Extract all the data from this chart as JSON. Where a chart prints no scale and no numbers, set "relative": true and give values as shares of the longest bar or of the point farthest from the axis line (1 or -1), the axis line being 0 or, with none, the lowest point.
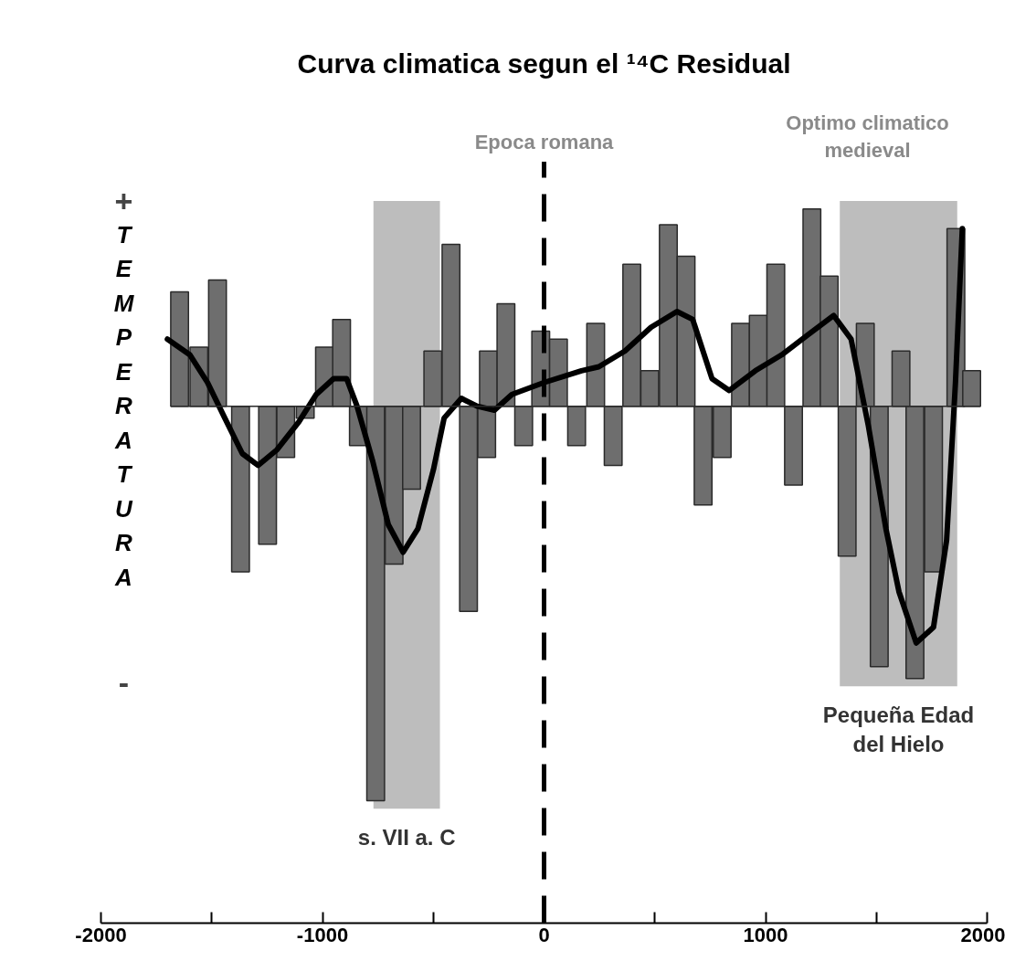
{
  "chart_data": {
    "type": "bar",
    "title": "Curva climatica segun el ¹⁴C Residual",
    "ylabel": "TEMPERATURA",
    "relative": true,
    "x": [
      -1645,
      -1558,
      -1474,
      -1370,
      -1248,
      -1166,
      -1078,
      -991,
      -914,
      -838,
      -760,
      -677,
      -598,
      -502,
      -420,
      -341,
      -259,
      -251,
      -172,
      -92,
      -15,
      65,
      147,
      233,
      312,
      396,
      477,
      561,
      641,
      718,
      804,
      887,
      967,
      1046,
      1126,
      1209,
      1287,
      1368,
      1450,
      1513,
      1611,
      1674,
      1758,
      1859,
      1930
    ],
    "series": [
      {
        "color": "#6e6e6e",
        "values": [
          0.29,
          0.15,
          0.32,
          -0.42,
          -0.35,
          -0.13,
          -0.03,
          0.15,
          0.22,
          -0.1,
          -1.0,
          -0.4,
          -0.21,
          0.14,
          0.41,
          -0.52,
          -0.13,
          0.14,
          0.26,
          -0.1,
          0.19,
          0.17,
          -0.1,
          0.21,
          -0.15,
          0.36,
          0.09,
          0.46,
          0.38,
          -0.25,
          -0.13,
          0.21,
          0.23,
          0.36,
          -0.2,
          0.5,
          0.33,
          -0.38,
          0.21,
          -0.66,
          0.14,
          -0.69,
          -0.42,
          0.45,
          0.09
        ]
      },
      {
        "type": "line",
        "color": "#000000",
        "x": [
          -1700,
          -1598,
          -1519,
          -1441,
          -1362,
          -1291,
          -1205,
          -1107,
          -1028,
          -950,
          -891,
          -844,
          -773,
          -703,
          -636,
          -569,
          -499,
          -451,
          -373,
          -302,
          -224,
          -145,
          0,
          169,
          247,
          365,
          483,
          600,
          671,
          758,
          836,
          954,
          1072,
          1189,
          1307,
          1386,
          1464,
          1543,
          1602,
          1680,
          1758,
          1817,
          1857,
          1888
        ],
        "values": [
          0.17,
          0.13,
          0.06,
          -0.03,
          -0.12,
          -0.15,
          -0.11,
          -0.04,
          0.03,
          0.07,
          0.07,
          0.0,
          -0.14,
          -0.3,
          -0.37,
          -0.31,
          -0.16,
          -0.03,
          0.02,
          0.0,
          -0.01,
          0.03,
          0.06,
          0.09,
          0.1,
          0.14,
          0.2,
          0.24,
          0.22,
          0.07,
          0.04,
          0.09,
          0.13,
          0.18,
          0.23,
          0.17,
          -0.05,
          -0.31,
          -0.47,
          -0.6,
          -0.56,
          -0.34,
          0.06,
          0.45
        ]
      }
    ],
    "xlim": [
      -2000,
      2000
    ],
    "xticks": [
      -2000,
      -1000,
      0,
      1000,
      2000
    ],
    "tick_labels": "x",
    "ref_lines": [
      {
        "axis": "x",
        "value": 0,
        "label": "Epoca romana",
        "color": "#000000",
        "line_style": "dashed"
      }
    ],
    "bands": [
      {
        "axis": "x",
        "from": -770,
        "to": -470,
        "label": "s. VII a. C",
        "color": "#bdbdbd"
      },
      {
        "axis": "x",
        "from": 1335,
        "to": 1865,
        "label": "Pequeña Edad del Hielo",
        "color": "#bdbdbd"
      }
    ],
    "annotations": [
      "+",
      "-",
      "Optimo climatico medieval"
    ],
    "grid": false
  }
}
